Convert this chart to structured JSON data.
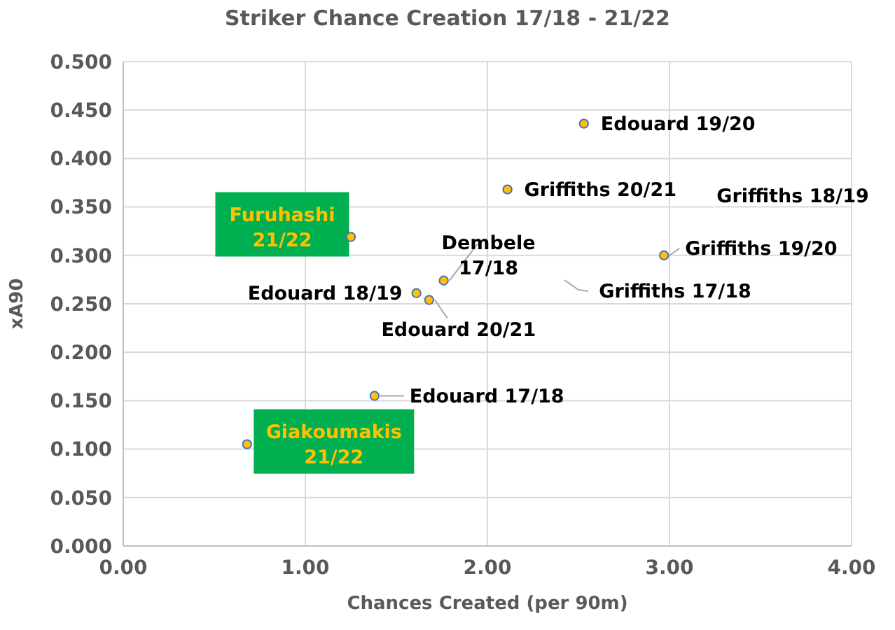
{
  "chart_data": {
    "type": "scatter",
    "title": "Striker Chance Creation 17/18 - 21/22",
    "xlabel": "Chances Created (per 90m)",
    "ylabel": "xA90",
    "xlim": [
      0,
      4
    ],
    "xticks": [
      {
        "value": 0,
        "label": "0.00"
      },
      {
        "value": 1,
        "label": "1.00"
      },
      {
        "value": 2,
        "label": "2.00"
      },
      {
        "value": 3,
        "label": "3.00"
      },
      {
        "value": 4,
        "label": "4.00"
      }
    ],
    "ylim": [
      0,
      0.5
    ],
    "yticks": [
      {
        "value": 0,
        "label": "0.000"
      },
      {
        "value": 0.05,
        "label": "0.050"
      },
      {
        "value": 0.1,
        "label": "0.100"
      },
      {
        "value": 0.15,
        "label": "0.150"
      },
      {
        "value": 0.2,
        "label": "0.200"
      },
      {
        "value": 0.25,
        "label": "0.250"
      },
      {
        "value": 0.3,
        "label": "0.300"
      },
      {
        "value": 0.35,
        "label": "0.350"
      },
      {
        "value": 0.4,
        "label": "0.400"
      },
      {
        "value": 0.45,
        "label": "0.450"
      },
      {
        "value": 0.5,
        "label": "0.500"
      }
    ],
    "grid": true,
    "marker": "circle",
    "series": [
      {
        "name": "Edouard 17/18",
        "color": "#ffc000",
        "x": [
          1.38
        ],
        "values": [
          0.155
        ]
      },
      {
        "name": "Edouard 18/19",
        "color": "#ffc000",
        "x": [
          1.61
        ],
        "values": [
          0.261
        ]
      },
      {
        "name": "Dembele 17/18",
        "color": "#ffc000",
        "x": [
          1.76
        ],
        "values": [
          0.274
        ]
      },
      {
        "name": "Edouard 20/21",
        "color": "#ffc000",
        "x": [
          1.68
        ],
        "values": [
          0.254
        ]
      },
      {
        "name": "Edouard 19/20",
        "color": "#ffc000",
        "x": [
          2.53
        ],
        "values": [
          0.436
        ]
      },
      {
        "name": "Griffiths 20/21",
        "color": "#ffc000",
        "x": [
          2.11
        ],
        "values": [
          0.368
        ]
      },
      {
        "name": "Griffiths 19/20",
        "color": "#ffc000",
        "x": [
          2.97
        ],
        "values": [
          0.3
        ]
      },
      {
        "name": "Furuhashi 21/22",
        "color": "#ffc000",
        "x": [
          1.25
        ],
        "values": [
          0.319
        ]
      },
      {
        "name": "Giakoumakis 21/22",
        "color": "#ffc000",
        "x": [
          0.68
        ],
        "values": [
          0.105
        ]
      }
    ],
    "annotations": [
      "Griffiths 18/19",
      "Griffiths 17/18"
    ]
  }
}
